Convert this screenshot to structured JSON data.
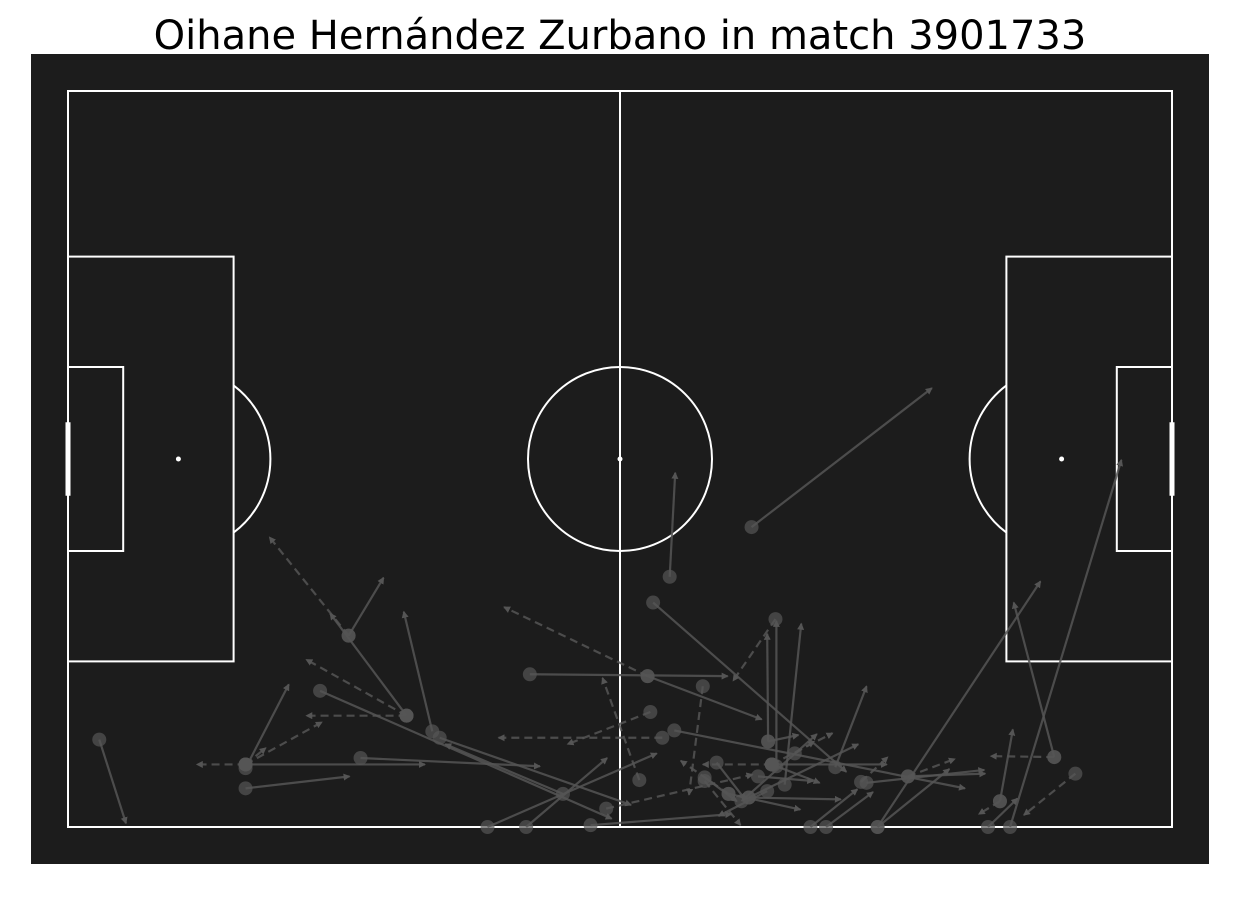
{
  "chart_data": {
    "type": "scatter",
    "title": "Oihane Hernández Zurbano in match 3901733",
    "pitch": {
      "length": 120,
      "width": 80,
      "background": "#1c1c1c",
      "line_color": "#ffffff"
    },
    "marker_color": "#555555",
    "passes": [
      {
        "x": 3.4,
        "y": 70.5,
        "end_x": 6.3,
        "end_y": 79.6,
        "style": "solid"
      },
      {
        "x": 19.3,
        "y": 73.6,
        "end_x": 24.0,
        "end_y": 64.5,
        "style": "solid"
      },
      {
        "x": 19.3,
        "y": 73.2,
        "end_x": 14.0,
        "end_y": 73.2,
        "style": "dashed"
      },
      {
        "x": 19.3,
        "y": 73.2,
        "end_x": 27.6,
        "end_y": 68.6,
        "style": "dashed"
      },
      {
        "x": 19.3,
        "y": 73.2,
        "end_x": 38.8,
        "end_y": 73.2,
        "style": "solid"
      },
      {
        "x": 19.3,
        "y": 73.2,
        "end_x": 21.5,
        "end_y": 71.4,
        "style": "dashed"
      },
      {
        "x": 19.3,
        "y": 75.8,
        "end_x": 30.6,
        "end_y": 74.5,
        "style": "solid"
      },
      {
        "x": 27.4,
        "y": 65.2,
        "end_x": 59.1,
        "end_y": 79.1,
        "style": "solid"
      },
      {
        "x": 30.5,
        "y": 59.2,
        "end_x": 34.3,
        "end_y": 52.9,
        "style": "solid"
      },
      {
        "x": 30.5,
        "y": 59.2,
        "end_x": 21.9,
        "end_y": 48.5,
        "style": "dashed"
      },
      {
        "x": 31.8,
        "y": 72.5,
        "end_x": 51.3,
        "end_y": 73.4,
        "style": "solid"
      },
      {
        "x": 36.8,
        "y": 67.9,
        "end_x": 28.5,
        "end_y": 56.8,
        "style": "solid"
      },
      {
        "x": 36.8,
        "y": 67.9,
        "end_x": 25.9,
        "end_y": 61.8,
        "style": "dashed"
      },
      {
        "x": 36.8,
        "y": 67.9,
        "end_x": 25.9,
        "end_y": 67.9,
        "style": "dashed"
      },
      {
        "x": 39.6,
        "y": 69.6,
        "end_x": 36.5,
        "end_y": 56.6,
        "style": "solid"
      },
      {
        "x": 40.4,
        "y": 70.3,
        "end_x": 61.2,
        "end_y": 77.6,
        "style": "solid"
      },
      {
        "x": 45.6,
        "y": 80.0,
        "end_x": 64.0,
        "end_y": 72.0,
        "style": "solid"
      },
      {
        "x": 49.8,
        "y": 80.0,
        "end_x": 58.6,
        "end_y": 72.5,
        "style": "solid"
      },
      {
        "x": 50.2,
        "y": 63.4,
        "end_x": 71.7,
        "end_y": 63.6,
        "style": "solid"
      },
      {
        "x": 53.8,
        "y": 76.4,
        "end_x": 41.0,
        "end_y": 71.0,
        "style": "solid"
      },
      {
        "x": 56.8,
        "y": 79.8,
        "end_x": 72.1,
        "end_y": 78.6,
        "style": "solid"
      },
      {
        "x": 58.5,
        "y": 78.0,
        "end_x": 74.4,
        "end_y": 74.3,
        "style": "dashed"
      },
      {
        "x": 62.1,
        "y": 74.9,
        "end_x": 58.1,
        "end_y": 63.8,
        "style": "dashed"
      },
      {
        "x": 63.0,
        "y": 63.6,
        "end_x": 75.4,
        "end_y": 68.3,
        "style": "solid"
      },
      {
        "x": 63.0,
        "y": 63.6,
        "end_x": 47.4,
        "end_y": 56.1,
        "style": "dashed"
      },
      {
        "x": 63.3,
        "y": 67.5,
        "end_x": 54.3,
        "end_y": 71.0,
        "style": "dashed"
      },
      {
        "x": 63.6,
        "y": 55.6,
        "end_x": 84.6,
        "end_y": 74.0,
        "style": "solid"
      },
      {
        "x": 64.6,
        "y": 70.3,
        "end_x": 46.8,
        "end_y": 70.3,
        "style": "dashed"
      },
      {
        "x": 65.4,
        "y": 52.8,
        "end_x": 66.0,
        "end_y": 41.5,
        "style": "solid"
      },
      {
        "x": 65.9,
        "y": 69.5,
        "end_x": 97.5,
        "end_y": 75.8,
        "style": "solid"
      },
      {
        "x": 69.0,
        "y": 64.7,
        "end_x": 67.5,
        "end_y": 76.5,
        "style": "dashed"
      },
      {
        "x": 69.2,
        "y": 74.6,
        "end_x": 72.7,
        "end_y": 77.2,
        "style": "solid"
      },
      {
        "x": 69.2,
        "y": 75.0,
        "end_x": 73.1,
        "end_y": 79.8,
        "style": "dashed"
      },
      {
        "x": 70.5,
        "y": 73.0,
        "end_x": 73.6,
        "end_y": 77.0,
        "style": "solid"
      },
      {
        "x": 71.8,
        "y": 76.4,
        "end_x": 66.6,
        "end_y": 72.8,
        "style": "dashed"
      },
      {
        "x": 71.8,
        "y": 76.4,
        "end_x": 79.6,
        "end_y": 78.1,
        "style": "solid"
      },
      {
        "x": 73.2,
        "y": 77.2,
        "end_x": 81.4,
        "end_y": 69.9,
        "style": "solid"
      },
      {
        "x": 74.3,
        "y": 47.4,
        "end_x": 93.9,
        "end_y": 32.3,
        "style": "solid"
      },
      {
        "x": 74.0,
        "y": 76.8,
        "end_x": 84.0,
        "end_y": 77.0,
        "style": "solid"
      },
      {
        "x": 74.0,
        "y": 76.8,
        "end_x": 85.9,
        "end_y": 71.0,
        "style": "solid"
      },
      {
        "x": 75.0,
        "y": 74.5,
        "end_x": 81.0,
        "end_y": 75.0,
        "style": "solid"
      },
      {
        "x": 76.1,
        "y": 70.7,
        "end_x": 76.0,
        "end_y": 59.0,
        "style": "solid"
      },
      {
        "x": 76.1,
        "y": 70.7,
        "end_x": 79.4,
        "end_y": 70.0,
        "style": "solid"
      },
      {
        "x": 76.5,
        "y": 73.2,
        "end_x": 69.0,
        "end_y": 73.2,
        "style": "dashed"
      },
      {
        "x": 76.5,
        "y": 73.2,
        "end_x": 81.7,
        "end_y": 75.2,
        "style": "solid"
      },
      {
        "x": 76.5,
        "y": 73.2,
        "end_x": 83.1,
        "end_y": 69.8,
        "style": "dashed"
      },
      {
        "x": 76.5,
        "y": 73.2,
        "end_x": 89.0,
        "end_y": 73.2,
        "style": "solid"
      },
      {
        "x": 76.9,
        "y": 57.4,
        "end_x": 72.3,
        "end_y": 64.1,
        "style": "dashed"
      },
      {
        "x": 77.0,
        "y": 73.4,
        "end_x": 77.0,
        "end_y": 57.6,
        "style": "solid"
      },
      {
        "x": 77.9,
        "y": 75.4,
        "end_x": 79.7,
        "end_y": 57.9,
        "style": "solid"
      },
      {
        "x": 79.0,
        "y": 72.0,
        "end_x": 81.1,
        "end_y": 70.7,
        "style": "dashed"
      },
      {
        "x": 80.7,
        "y": 80.0,
        "end_x": 85.8,
        "end_y": 75.9,
        "style": "solid"
      },
      {
        "x": 82.4,
        "y": 80.0,
        "end_x": 87.5,
        "end_y": 76.2,
        "style": "solid"
      },
      {
        "x": 83.4,
        "y": 73.5,
        "end_x": 86.8,
        "end_y": 64.7,
        "style": "solid"
      },
      {
        "x": 86.2,
        "y": 75.1,
        "end_x": 89.1,
        "end_y": 72.4,
        "style": "dashed"
      },
      {
        "x": 86.8,
        "y": 75.2,
        "end_x": 99.6,
        "end_y": 73.8,
        "style": "solid"
      },
      {
        "x": 88.0,
        "y": 80.0,
        "end_x": 105.7,
        "end_y": 53.3,
        "style": "solid"
      },
      {
        "x": 88.0,
        "y": 80.0,
        "end_x": 95.8,
        "end_y": 73.7,
        "style": "solid"
      },
      {
        "x": 91.3,
        "y": 74.5,
        "end_x": 96.4,
        "end_y": 72.6,
        "style": "dashed"
      },
      {
        "x": 91.3,
        "y": 74.5,
        "end_x": 99.7,
        "end_y": 74.2,
        "style": "solid"
      },
      {
        "x": 100.0,
        "y": 80.0,
        "end_x": 103.2,
        "end_y": 76.9,
        "style": "solid"
      },
      {
        "x": 102.4,
        "y": 80.0,
        "end_x": 114.5,
        "end_y": 40.1,
        "style": "solid"
      },
      {
        "x": 101.3,
        "y": 77.2,
        "end_x": 99.0,
        "end_y": 78.6,
        "style": "dashed"
      },
      {
        "x": 101.3,
        "y": 77.2,
        "end_x": 102.7,
        "end_y": 69.4,
        "style": "solid"
      },
      {
        "x": 107.2,
        "y": 72.4,
        "end_x": 100.3,
        "end_y": 72.3,
        "style": "dashed"
      },
      {
        "x": 107.2,
        "y": 72.4,
        "end_x": 102.8,
        "end_y": 55.6,
        "style": "solid"
      },
      {
        "x": 109.5,
        "y": 74.2,
        "end_x": 103.9,
        "end_y": 78.7,
        "style": "dashed"
      },
      {
        "x": 76.0,
        "y": 76.1,
        "end_x": 70.7,
        "end_y": 78.8,
        "style": "solid"
      }
    ]
  }
}
